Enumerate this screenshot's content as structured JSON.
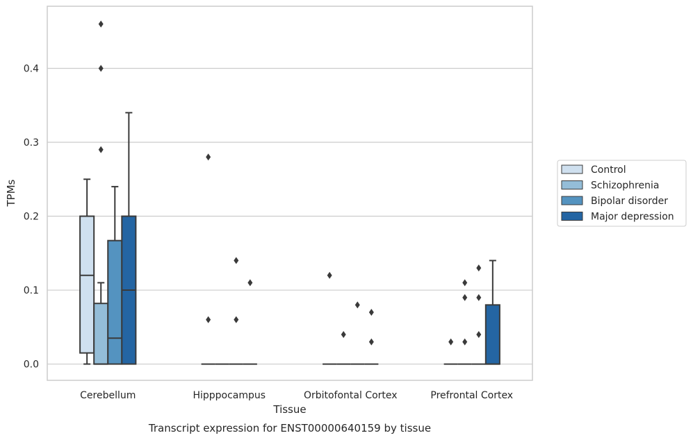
{
  "chart_data": {
    "type": "box",
    "title": "",
    "caption": "Transcript expression for ENST00000640159 by tissue",
    "xlabel": "Tissue",
    "ylabel": "TPMs",
    "ylim": [
      -0.022,
      0.484
    ],
    "yticks": [
      "0.0",
      "0.1",
      "0.2",
      "0.3",
      "0.4"
    ],
    "grid": "horizontal",
    "legend_position": "right",
    "categories": [
      "Cerebellum",
      "Hipppocampus",
      "Orbitofontal Cortex",
      "Prefrontal Cortex"
    ],
    "series": [
      {
        "name": "Control",
        "color": "#cfe0ef",
        "boxes": [
          {
            "whisker_low": 0.0,
            "q1": 0.015,
            "median": 0.12,
            "q3": 0.2,
            "whisker_high": 0.25,
            "outliers": []
          },
          {
            "whisker_low": 0.0,
            "q1": 0.0,
            "median": 0.0,
            "q3": 0.0,
            "whisker_high": 0.0,
            "outliers": [
              0.28,
              0.06
            ]
          },
          {
            "whisker_low": 0.0,
            "q1": 0.0,
            "median": 0.0,
            "q3": 0.0,
            "whisker_high": 0.0,
            "outliers": [
              0.12
            ]
          },
          {
            "whisker_low": 0.0,
            "q1": 0.0,
            "median": 0.0,
            "q3": 0.0,
            "whisker_high": 0.0,
            "outliers": [
              0.03
            ]
          }
        ]
      },
      {
        "name": "Schizophrenia",
        "color": "#94bdd8",
        "boxes": [
          {
            "whisker_low": 0.0,
            "q1": 0.0,
            "median": 0.0,
            "q3": 0.082,
            "whisker_high": 0.11,
            "outliers": [
              0.46,
              0.4,
              0.29
            ]
          },
          {
            "whisker_low": 0.0,
            "q1": 0.0,
            "median": 0.0,
            "q3": 0.0,
            "whisker_high": 0.0,
            "outliers": []
          },
          {
            "whisker_low": 0.0,
            "q1": 0.0,
            "median": 0.0,
            "q3": 0.0,
            "whisker_high": 0.0,
            "outliers": [
              0.04
            ]
          },
          {
            "whisker_low": 0.0,
            "q1": 0.0,
            "median": 0.0,
            "q3": 0.0,
            "whisker_high": 0.0,
            "outliers": [
              0.11,
              0.09,
              0.03
            ]
          }
        ]
      },
      {
        "name": "Bipolar disorder",
        "color": "#5493c0",
        "boxes": [
          {
            "whisker_low": 0.0,
            "q1": 0.0,
            "median": 0.035,
            "q3": 0.167,
            "whisker_high": 0.24,
            "outliers": []
          },
          {
            "whisker_low": 0.0,
            "q1": 0.0,
            "median": 0.0,
            "q3": 0.0,
            "whisker_high": 0.0,
            "outliers": [
              0.14,
              0.06
            ]
          },
          {
            "whisker_low": 0.0,
            "q1": 0.0,
            "median": 0.0,
            "q3": 0.0,
            "whisker_high": 0.0,
            "outliers": [
              0.08
            ]
          },
          {
            "whisker_low": 0.0,
            "q1": 0.0,
            "median": 0.0,
            "q3": 0.0,
            "whisker_high": 0.0,
            "outliers": [
              0.13,
              0.09,
              0.04
            ]
          }
        ]
      },
      {
        "name": "Major depression",
        "color": "#2465a3",
        "boxes": [
          {
            "whisker_low": 0.0,
            "q1": 0.0,
            "median": 0.1,
            "q3": 0.2,
            "whisker_high": 0.34,
            "outliers": []
          },
          {
            "whisker_low": 0.0,
            "q1": 0.0,
            "median": 0.0,
            "q3": 0.0,
            "whisker_high": 0.0,
            "outliers": [
              0.11
            ]
          },
          {
            "whisker_low": 0.0,
            "q1": 0.0,
            "median": 0.0,
            "q3": 0.0,
            "whisker_high": 0.0,
            "outliers": [
              0.07,
              0.03
            ]
          },
          {
            "whisker_low": 0.0,
            "q1": 0.0,
            "median": 0.0,
            "q3": 0.08,
            "whisker_high": 0.14,
            "outliers": []
          }
        ]
      }
    ]
  }
}
